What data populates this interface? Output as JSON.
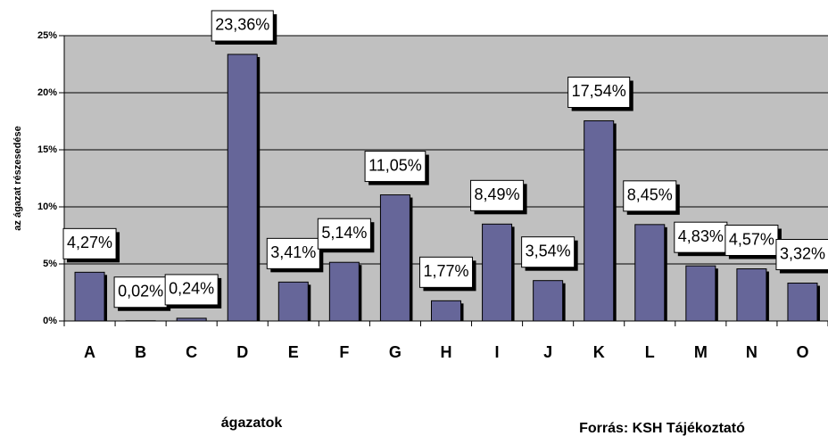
{
  "chart_data": {
    "type": "bar",
    "y_label": "az ágazat részesedése",
    "x_label": "ágazatok",
    "source": "Forrás: KSH Tájékoztató",
    "categories": [
      "A",
      "B",
      "C",
      "D",
      "E",
      "F",
      "G",
      "H",
      "I",
      "J",
      "K",
      "L",
      "M",
      "N",
      "O"
    ],
    "values": [
      4.27,
      0.02,
      0.24,
      23.36,
      3.41,
      5.14,
      11.05,
      1.77,
      8.49,
      3.54,
      17.54,
      8.45,
      4.83,
      4.57,
      3.32
    ],
    "value_labels": [
      "4,27%",
      "0,02%",
      "0,24%",
      "23,36%",
      "3,41%",
      "5,14%",
      "11,05%",
      "1,77%",
      "8,49%",
      "3,54%",
      "17,54%",
      "8,45%",
      "4,83%",
      "4,57%",
      "3,32%"
    ],
    "color": "#666699",
    "ylim": [
      0,
      25
    ],
    "yticks": [
      {
        "value": 0,
        "label": "0%"
      },
      {
        "value": 5,
        "label": "5%"
      },
      {
        "value": 10,
        "label": "10%"
      },
      {
        "value": 15,
        "label": "15%"
      },
      {
        "value": 20,
        "label": "20%"
      },
      {
        "value": 25,
        "label": "25%"
      }
    ],
    "grid": true
  }
}
